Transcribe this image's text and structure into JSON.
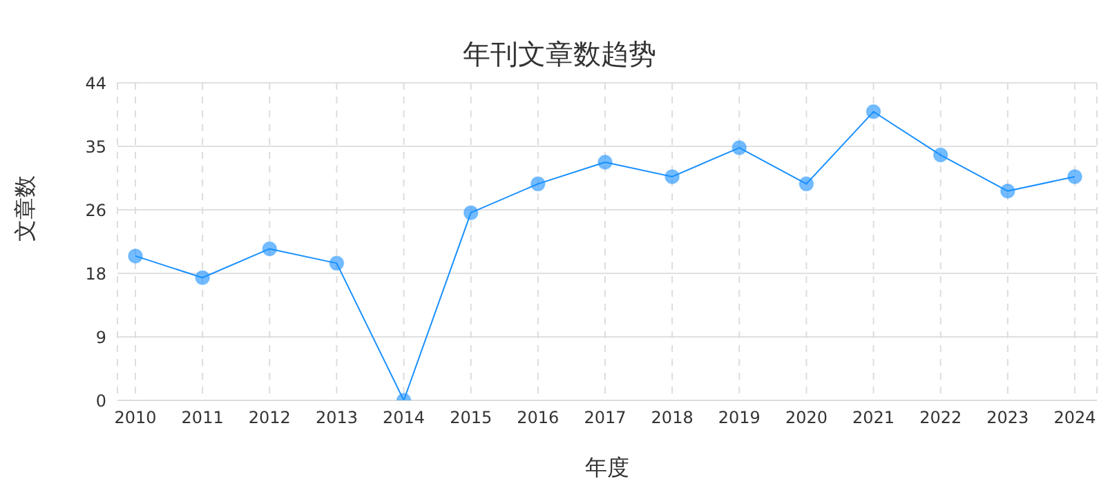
{
  "chart_data": {
    "type": "line",
    "title": "年刊文章数趋势",
    "xlabel": "年度",
    "ylabel": "文章数",
    "categories": [
      "2010",
      "2011",
      "2012",
      "2013",
      "2014",
      "2015",
      "2016",
      "2017",
      "2018",
      "2019",
      "2020",
      "2021",
      "2022",
      "2023",
      "2024"
    ],
    "series": [
      {
        "color": "#1890ff",
        "values": [
          20,
          17,
          21,
          19,
          0,
          26,
          30,
          33,
          31,
          35,
          30,
          40,
          34,
          29,
          31
        ]
      }
    ],
    "ylim": [
      0,
      44
    ],
    "yticks": [
      0,
      {
        "value": 8.8,
        "label": "9"
      },
      {
        "value": 17.6,
        "label": "18"
      },
      {
        "value": 26.4,
        "label": "26"
      },
      {
        "value": 35.2,
        "label": "35"
      },
      44
    ],
    "grid": true,
    "marker": "circle",
    "line_style": "solid",
    "legend": false
  }
}
